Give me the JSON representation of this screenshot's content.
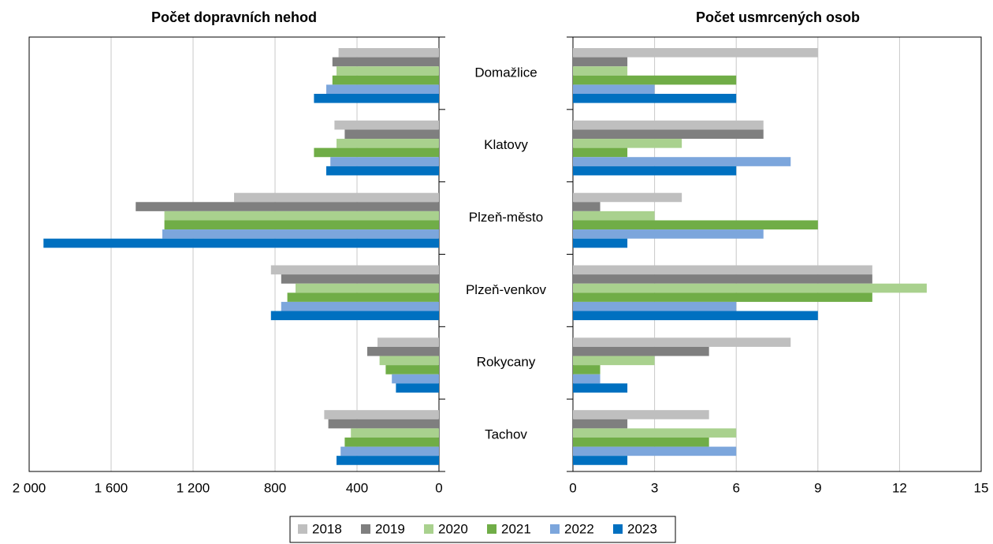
{
  "chart_data": [
    {
      "type": "bar",
      "orientation": "horizontal",
      "title": "Počet dopravních nehod",
      "categories": [
        "Domažlice",
        "Klatovy",
        "Plzeň-město",
        "Plzeň-venkov",
        "Rokycany",
        "Tachov"
      ],
      "series": [
        {
          "name": "2018",
          "color": "#bfbfbf",
          "values": [
            490,
            510,
            1000,
            820,
            300,
            560
          ]
        },
        {
          "name": "2019",
          "color": "#7f7f7f",
          "values": [
            520,
            460,
            1480,
            770,
            350,
            540
          ]
        },
        {
          "name": "2020",
          "color": "#a9d18e",
          "values": [
            500,
            500,
            1340,
            700,
            290,
            430
          ]
        },
        {
          "name": "2021",
          "color": "#70ad47",
          "values": [
            520,
            610,
            1340,
            740,
            260,
            460
          ]
        },
        {
          "name": "2022",
          "color": "#7ca6dc",
          "values": [
            550,
            530,
            1350,
            770,
            230,
            480
          ]
        },
        {
          "name": "2023",
          "color": "#0070c0",
          "values": [
            610,
            550,
            1930,
            820,
            210,
            500
          ]
        }
      ],
      "xlim": [
        2000,
        0
      ],
      "xticks": [
        {
          "value": 2000,
          "label": "2 000"
        },
        {
          "value": 1600,
          "label": "1 600"
        },
        {
          "value": 1200,
          "label": "1 200"
        },
        800,
        400,
        0
      ],
      "grid": true
    },
    {
      "type": "bar",
      "orientation": "horizontal",
      "title": "Počet usmrcených osob",
      "series": [
        {
          "values": [
            9,
            7,
            4,
            11,
            8,
            5
          ]
        },
        {
          "values": [
            2,
            7,
            1,
            11,
            5,
            2
          ]
        },
        {
          "values": [
            2,
            4,
            3,
            13,
            3,
            6
          ]
        },
        {
          "values": [
            6,
            2,
            9,
            11,
            1,
            5
          ]
        },
        {
          "values": [
            3,
            8,
            7,
            6,
            1,
            6
          ]
        },
        {
          "values": [
            6,
            6,
            2,
            9,
            2,
            2
          ]
        }
      ],
      "xlim": [
        0,
        15
      ],
      "xticks": [
        0,
        3,
        6,
        9,
        12,
        15
      ],
      "grid": true
    }
  ]
}
